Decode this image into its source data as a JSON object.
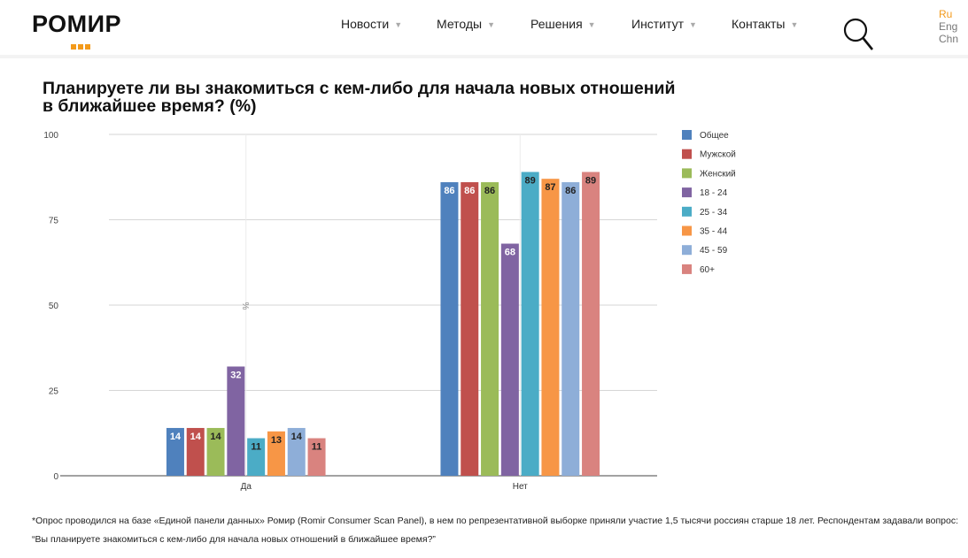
{
  "header": {
    "logo": "РОМИР",
    "nav": [
      "Новости",
      "Методы",
      "Решения",
      "Институт",
      "Контакты"
    ],
    "languages": [
      {
        "label": "Ru",
        "active": true
      },
      {
        "label": "Eng",
        "active": false
      },
      {
        "label": "Chn",
        "active": false
      }
    ]
  },
  "chart_data": {
    "type": "bar",
    "title": "Планируете ли вы знакомиться с кем-либо для начала новых отношений в ближайшее время? (%)",
    "ylabel": "%",
    "xlabel": "",
    "ylim": [
      0,
      100
    ],
    "yticks": [
      0,
      25,
      50,
      75,
      100
    ],
    "categories": [
      "Да",
      "Нет"
    ],
    "legend_position": "right",
    "series": [
      {
        "name": "Общее",
        "color": "#4f81bd",
        "values": [
          14,
          86
        ],
        "label_color": "#ffffff"
      },
      {
        "name": "Мужской",
        "color": "#c0504d",
        "values": [
          14,
          86
        ],
        "label_color": "#ffffff"
      },
      {
        "name": "Женский",
        "color": "#9bbb59",
        "values": [
          14,
          86
        ],
        "label_color": "#222222"
      },
      {
        "name": "18 - 24",
        "color": "#8064a2",
        "values": [
          32,
          68
        ],
        "label_color": "#ffffff"
      },
      {
        "name": "25 - 34",
        "color": "#4bacc6",
        "values": [
          11,
          89
        ],
        "label_color": "#222222"
      },
      {
        "name": "35 - 44",
        "color": "#f79646",
        "values": [
          13,
          87
        ],
        "label_color": "#222222"
      },
      {
        "name": "45 - 59",
        "color": "#8eaed8",
        "values": [
          14,
          86
        ],
        "label_color": "#222222"
      },
      {
        "name": "60+",
        "color": "#d9837f",
        "values": [
          11,
          89
        ],
        "label_color": "#222222"
      }
    ]
  },
  "footnote": "*Опрос проводился на базе «Единой панели данных» Ромир (Romir Consumer Scan Panel), в нем по репрезентативной выборке приняли участие 1,5 тысячи россиян старше 18 лет. Респондентам задавали вопрос: “Вы планируете знакомиться с кем-либо для начала новых отношений в ближайшее время?”"
}
